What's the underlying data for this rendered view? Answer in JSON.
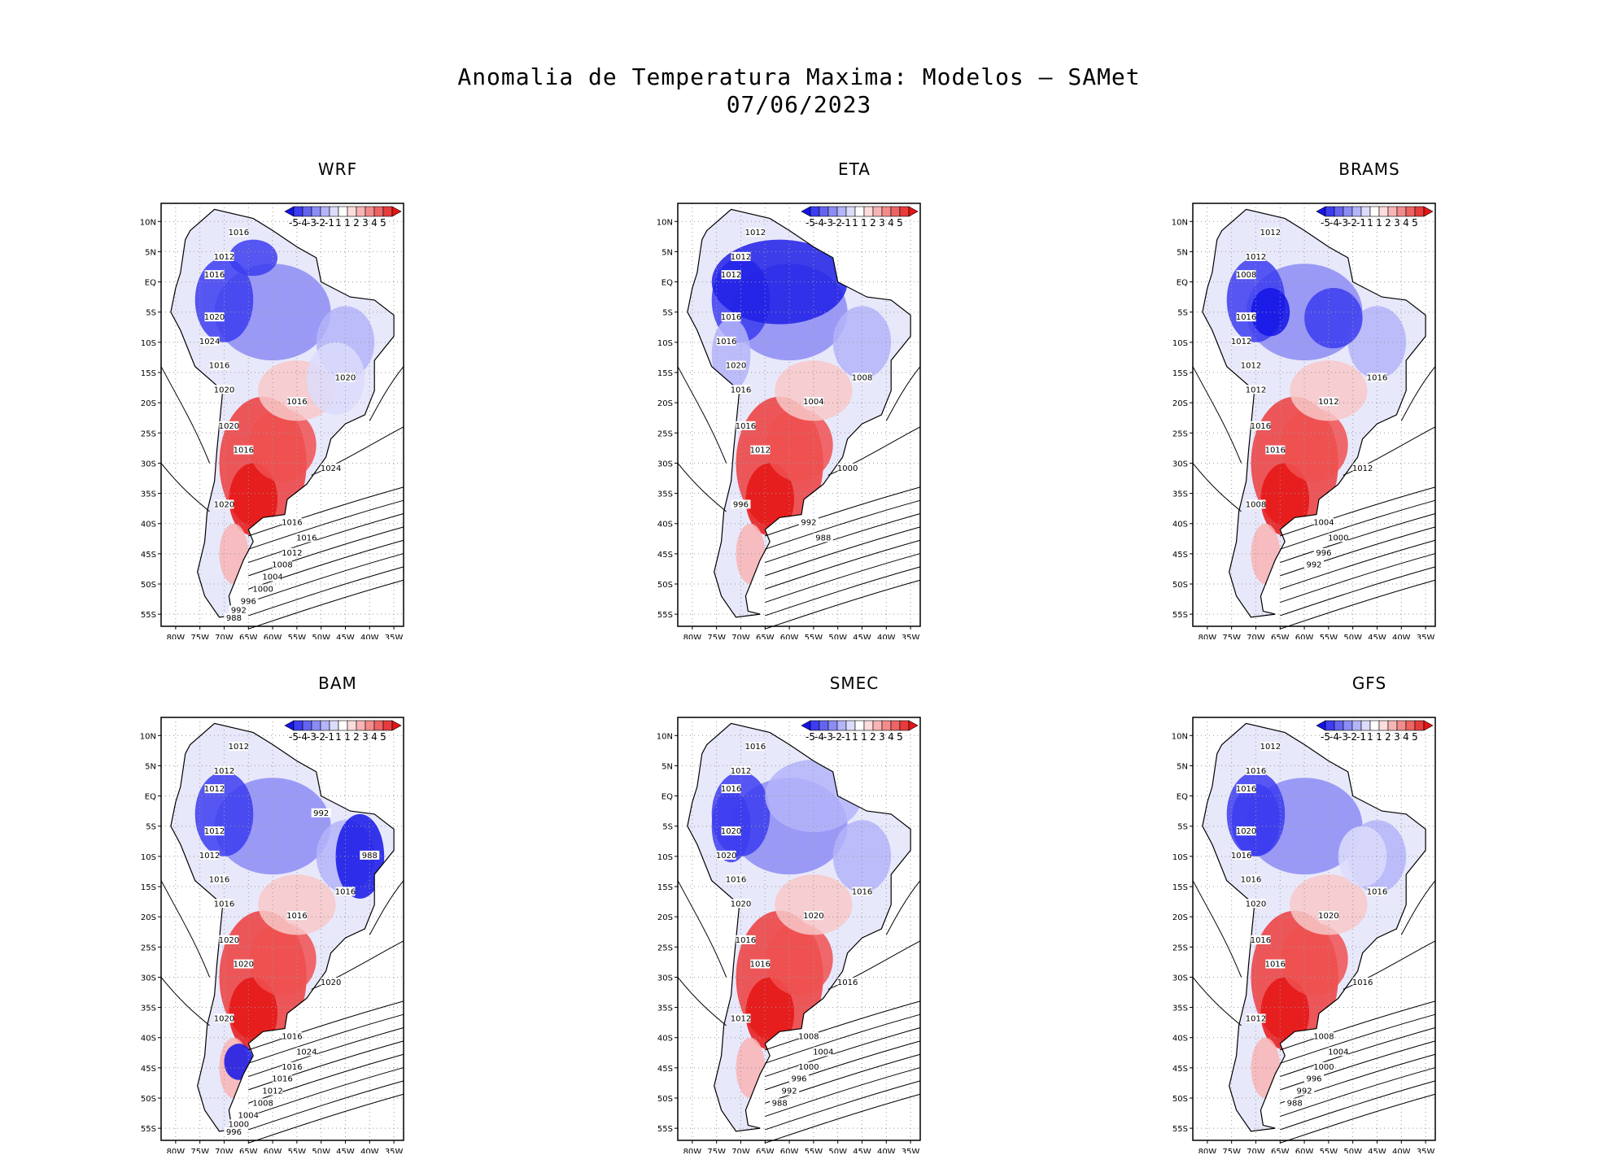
{
  "title": {
    "line1": "Anomalia de Temperatura Maxima: Modelos — SAMet",
    "line2": "07/06/2023"
  },
  "axes": {
    "lat_labels": [
      "10N",
      "5N",
      "EQ",
      "5S",
      "10S",
      "15S",
      "20S",
      "25S",
      "30S",
      "35S",
      "40S",
      "45S",
      "50S",
      "55S"
    ],
    "lon_labels": [
      "80W",
      "75W",
      "70W",
      "65W",
      "60W",
      "55W",
      "50W",
      "45W",
      "40W",
      "35W"
    ]
  },
  "colorbar": {
    "labels": [
      "-5",
      "-4",
      "-3",
      "-2",
      "-1",
      "1",
      "1",
      "2",
      "3",
      "4",
      "5"
    ],
    "colors": [
      "#1414e6",
      "#3c3cf0",
      "#6464f0",
      "#8c8cf5",
      "#b4b4fa",
      "#dcdcfc",
      "#ffffff",
      "#fcdcdc",
      "#f8b4b4",
      "#f28c8c",
      "#ec6464",
      "#e63c3c",
      "#e61414"
    ]
  },
  "panels": [
    {
      "id": "wrf",
      "name": "WRF",
      "isobar_labels": [
        "1016",
        "1012",
        "1016",
        "1020",
        "1024",
        "1016",
        "1020",
        "1020",
        "1016",
        "1020",
        "1016",
        "1024",
        "1020",
        "1016",
        "1016",
        "1012",
        "1008",
        "1004",
        "1000",
        "996",
        "992",
        "988"
      ]
    },
    {
      "id": "eta",
      "name": "ETA",
      "isobar_labels": [
        "1012",
        "1012",
        "1012",
        "1016",
        "1016",
        "1020",
        "1016",
        "1016",
        "1012",
        "1008",
        "1004",
        "1000",
        "996",
        "992",
        "988"
      ]
    },
    {
      "id": "brams",
      "name": "BRAMS",
      "isobar_labels": [
        "1012",
        "1012",
        "1008",
        "1016",
        "1012",
        "1012",
        "1012",
        "1016",
        "1016",
        "1016",
        "1012",
        "1012",
        "1008",
        "1004",
        "1000",
        "996",
        "992"
      ]
    },
    {
      "id": "bam",
      "name": "BAM",
      "isobar_labels": [
        "1012",
        "1012",
        "1012",
        "1012",
        "1012",
        "1016",
        "1016",
        "1020",
        "1020",
        "1016",
        "1016",
        "1020",
        "1020",
        "1016",
        "1024",
        "1016",
        "1016",
        "1012",
        "1008",
        "1004",
        "1000",
        "996",
        "992",
        "988"
      ]
    },
    {
      "id": "smec",
      "name": "SMEC",
      "isobar_labels": [
        "1016",
        "1012",
        "1016",
        "1020",
        "1020",
        "1016",
        "1020",
        "1016",
        "1016",
        "1016",
        "1020",
        "1016",
        "1012",
        "1008",
        "1004",
        "1000",
        "996",
        "992",
        "988"
      ]
    },
    {
      "id": "gfs",
      "name": "GFS",
      "isobar_labels": [
        "1012",
        "1016",
        "1016",
        "1020",
        "1016",
        "1016",
        "1020",
        "1016",
        "1016",
        "1016",
        "1020",
        "1016",
        "1012",
        "1008",
        "1004",
        "1000",
        "996",
        "992",
        "988"
      ]
    }
  ]
}
